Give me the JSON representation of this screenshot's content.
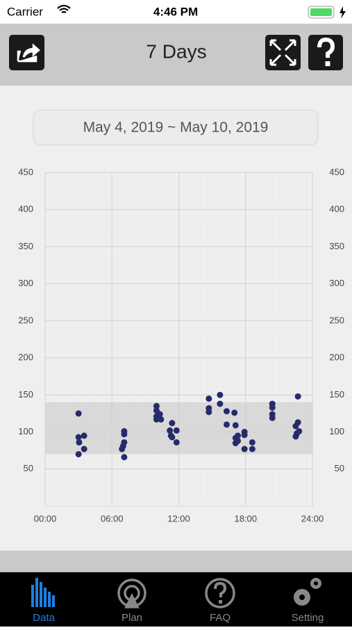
{
  "status_bar": {
    "carrier": "Carrier",
    "time": "4:46 PM"
  },
  "header": {
    "title": "7 Days"
  },
  "date_range": "May 4, 2019 ~ May 10, 2019",
  "chart_data": {
    "type": "scatter",
    "color": "#262b6b",
    "x": [
      3.0,
      3.0,
      3.05,
      3.5,
      3.5,
      3.0,
      7.1,
      7.1,
      7.1,
      7.0,
      6.9,
      7.1,
      10.0,
      10.0,
      10.3,
      10.0,
      10.0,
      10.4,
      11.4,
      11.2,
      11.8,
      11.3,
      11.4,
      11.8,
      14.7,
      14.7,
      14.7,
      15.7,
      15.7,
      16.3,
      17.0,
      16.3,
      17.1,
      17.3,
      17.1,
      17.3,
      17.1,
      17.9,
      17.9,
      17.9,
      18.6,
      18.6,
      20.4,
      20.4,
      20.4,
      20.4,
      22.7,
      22.7,
      22.5,
      22.8,
      22.6,
      22.5
    ],
    "values": [
      125,
      93,
      86,
      95,
      77,
      70,
      101,
      97,
      86,
      81,
      77,
      66,
      135,
      129,
      124,
      121,
      117,
      117,
      112,
      102,
      102,
      95,
      93,
      86,
      145,
      132,
      127,
      150,
      138,
      128,
      126,
      110,
      109,
      95,
      92,
      88,
      85,
      100,
      96,
      77,
      86,
      77,
      138,
      133,
      124,
      119,
      148,
      113,
      108,
      101,
      98,
      94
    ],
    "xlim": [
      0,
      24
    ],
    "xticks": [
      {
        "value": 0,
        "label": "00:00"
      },
      {
        "value": 6,
        "label": "06:00"
      },
      {
        "value": 12,
        "label": "12:00"
      },
      {
        "value": 18,
        "label": "18:00"
      },
      {
        "value": 24,
        "label": "24:00"
      }
    ],
    "ylim": [
      0,
      450
    ],
    "yticks": [
      50,
      100,
      150,
      200,
      250,
      300,
      350,
      400,
      450
    ],
    "target_range": [
      70,
      140
    ],
    "target_color": "#d9d9d9",
    "grid": true
  },
  "tabs": [
    "Data",
    "Plan",
    "FAQ",
    "Setting"
  ]
}
